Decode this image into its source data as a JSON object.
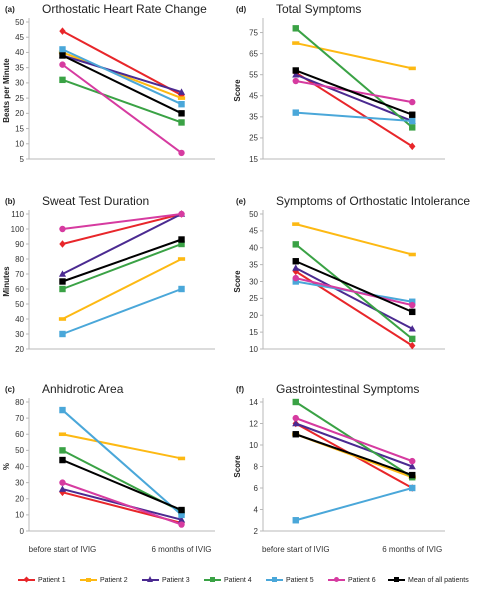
{
  "chart_data": [
    {
      "panel_id": "(a)",
      "title": "Orthostatic Heart Rate Change",
      "type": "line",
      "ylabel": "Beats per Minute",
      "ylim": [
        5,
        50
      ],
      "yticks": [
        5,
        10,
        15,
        20,
        25,
        30,
        35,
        40,
        45,
        50
      ],
      "categories": [
        "",
        ""
      ],
      "series": [
        {
          "name": "Patient 1",
          "values": [
            47,
            26
          ]
        },
        {
          "name": "Patient 2",
          "values": [
            40,
            25
          ]
        },
        {
          "name": "Patient 3",
          "values": [
            39,
            27
          ]
        },
        {
          "name": "Patient 4",
          "values": [
            31,
            17
          ]
        },
        {
          "name": "Patient 5",
          "values": [
            41,
            23
          ]
        },
        {
          "name": "Patient 6",
          "values": [
            36,
            7
          ]
        },
        {
          "name": "Mean of all patients",
          "values": [
            39,
            20
          ]
        }
      ]
    },
    {
      "panel_id": "(d)",
      "title": "Total Symptoms",
      "type": "line",
      "ylabel": "Score",
      "ylim": [
        15,
        80
      ],
      "yticks": [
        15,
        25,
        35,
        45,
        55,
        65,
        75
      ],
      "categories": [
        "",
        ""
      ],
      "series": [
        {
          "name": "Patient 1",
          "values": [
            56,
            21
          ]
        },
        {
          "name": "Patient 2",
          "values": [
            70,
            58
          ]
        },
        {
          "name": "Patient 3",
          "values": [
            55,
            33
          ]
        },
        {
          "name": "Patient 4",
          "values": [
            77,
            30
          ]
        },
        {
          "name": "Patient 5",
          "values": [
            37,
            33
          ]
        },
        {
          "name": "Patient 6",
          "values": [
            52,
            42
          ]
        },
        {
          "name": "Mean of all patients",
          "values": [
            57,
            36
          ]
        }
      ]
    },
    {
      "panel_id": "(b)",
      "title": "Sweat Test Duration",
      "type": "line",
      "ylabel": "Minutes",
      "ylim": [
        20,
        110
      ],
      "yticks": [
        20,
        30,
        40,
        50,
        60,
        70,
        80,
        90,
        100,
        110
      ],
      "categories": [
        "",
        ""
      ],
      "series": [
        {
          "name": "Patient 1",
          "values": [
            90,
            110
          ]
        },
        {
          "name": "Patient 2",
          "values": [
            40,
            80
          ]
        },
        {
          "name": "Patient 3",
          "values": [
            70,
            110
          ]
        },
        {
          "name": "Patient 4",
          "values": [
            60,
            90
          ]
        },
        {
          "name": "Patient 5",
          "values": [
            30,
            60
          ]
        },
        {
          "name": "Patient 6",
          "values": [
            100,
            110
          ]
        },
        {
          "name": "Mean of all patients",
          "values": [
            65,
            93
          ]
        }
      ]
    },
    {
      "panel_id": "(e)",
      "title": "Symptoms of Orthostatic Intolerance",
      "type": "line",
      "ylabel": "Score",
      "ylim": [
        10,
        50
      ],
      "yticks": [
        10,
        15,
        20,
        25,
        30,
        35,
        40,
        45,
        50
      ],
      "categories": [
        "",
        ""
      ],
      "series": [
        {
          "name": "Patient 1",
          "values": [
            33,
            11
          ]
        },
        {
          "name": "Patient 2",
          "values": [
            47,
            38
          ]
        },
        {
          "name": "Patient 3",
          "values": [
            34,
            16
          ]
        },
        {
          "name": "Patient 4",
          "values": [
            41,
            13
          ]
        },
        {
          "name": "Patient 5",
          "values": [
            30,
            24
          ]
        },
        {
          "name": "Patient 6",
          "values": [
            31,
            23
          ]
        },
        {
          "name": "Mean of all patients",
          "values": [
            36,
            21
          ]
        }
      ]
    },
    {
      "panel_id": "(c)",
      "title": "Anhidrotic Area",
      "type": "line",
      "ylabel": "%",
      "ylim": [
        0,
        80
      ],
      "yticks": [
        0,
        10,
        20,
        30,
        40,
        50,
        60,
        70,
        80
      ],
      "categories": [
        "before start of IVIG",
        "6 months of IVIG"
      ],
      "series": [
        {
          "name": "Patient 1",
          "values": [
            24,
            5
          ]
        },
        {
          "name": "Patient 2",
          "values": [
            60,
            45
          ]
        },
        {
          "name": "Patient 3",
          "values": [
            26,
            7
          ]
        },
        {
          "name": "Patient 4",
          "values": [
            50,
            12
          ]
        },
        {
          "name": "Patient 5",
          "values": [
            75,
            10
          ]
        },
        {
          "name": "Patient 6",
          "values": [
            30,
            4
          ]
        },
        {
          "name": "Mean of all patients",
          "values": [
            44,
            13
          ]
        }
      ]
    },
    {
      "panel_id": "(f)",
      "title": "Gastrointestinal Symptoms",
      "type": "line",
      "ylabel": "Score",
      "ylim": [
        2,
        14
      ],
      "yticks": [
        2,
        4,
        6,
        8,
        10,
        12,
        14
      ],
      "categories": [
        "before start of IVIG",
        "6 months of IVIG"
      ],
      "series": [
        {
          "name": "Patient 1",
          "values": [
            12,
            6
          ]
        },
        {
          "name": "Patient 2",
          "values": [
            11,
            7
          ]
        },
        {
          "name": "Patient 3",
          "values": [
            12,
            8
          ]
        },
        {
          "name": "Patient 4",
          "values": [
            14,
            7
          ]
        },
        {
          "name": "Patient 5",
          "values": [
            3,
            6
          ]
        },
        {
          "name": "Patient 6",
          "values": [
            12.5,
            8.5
          ]
        },
        {
          "name": "Mean of all patients",
          "values": [
            11,
            7.2
          ]
        }
      ]
    }
  ],
  "series_colors": [
    "#e8262a",
    "#fdb913",
    "#4b2a91",
    "#3aa245",
    "#4aa7d9",
    "#d63ba0",
    "#000000"
  ],
  "legend": [
    {
      "label": "Patient 1",
      "color": "#e8262a",
      "marker": "diamond"
    },
    {
      "label": "Patient 2",
      "color": "#fdb913",
      "marker": "dash"
    },
    {
      "label": "Patient 3",
      "color": "#4b2a91",
      "marker": "triangle"
    },
    {
      "label": "Patient 4",
      "color": "#3aa245",
      "marker": "square"
    },
    {
      "label": "Patient 5",
      "color": "#4aa7d9",
      "marker": "square"
    },
    {
      "label": "Patient 6",
      "color": "#d63ba0",
      "marker": "circle"
    },
    {
      "label": "Mean of all patients",
      "color": "#000000",
      "marker": "square"
    }
  ]
}
